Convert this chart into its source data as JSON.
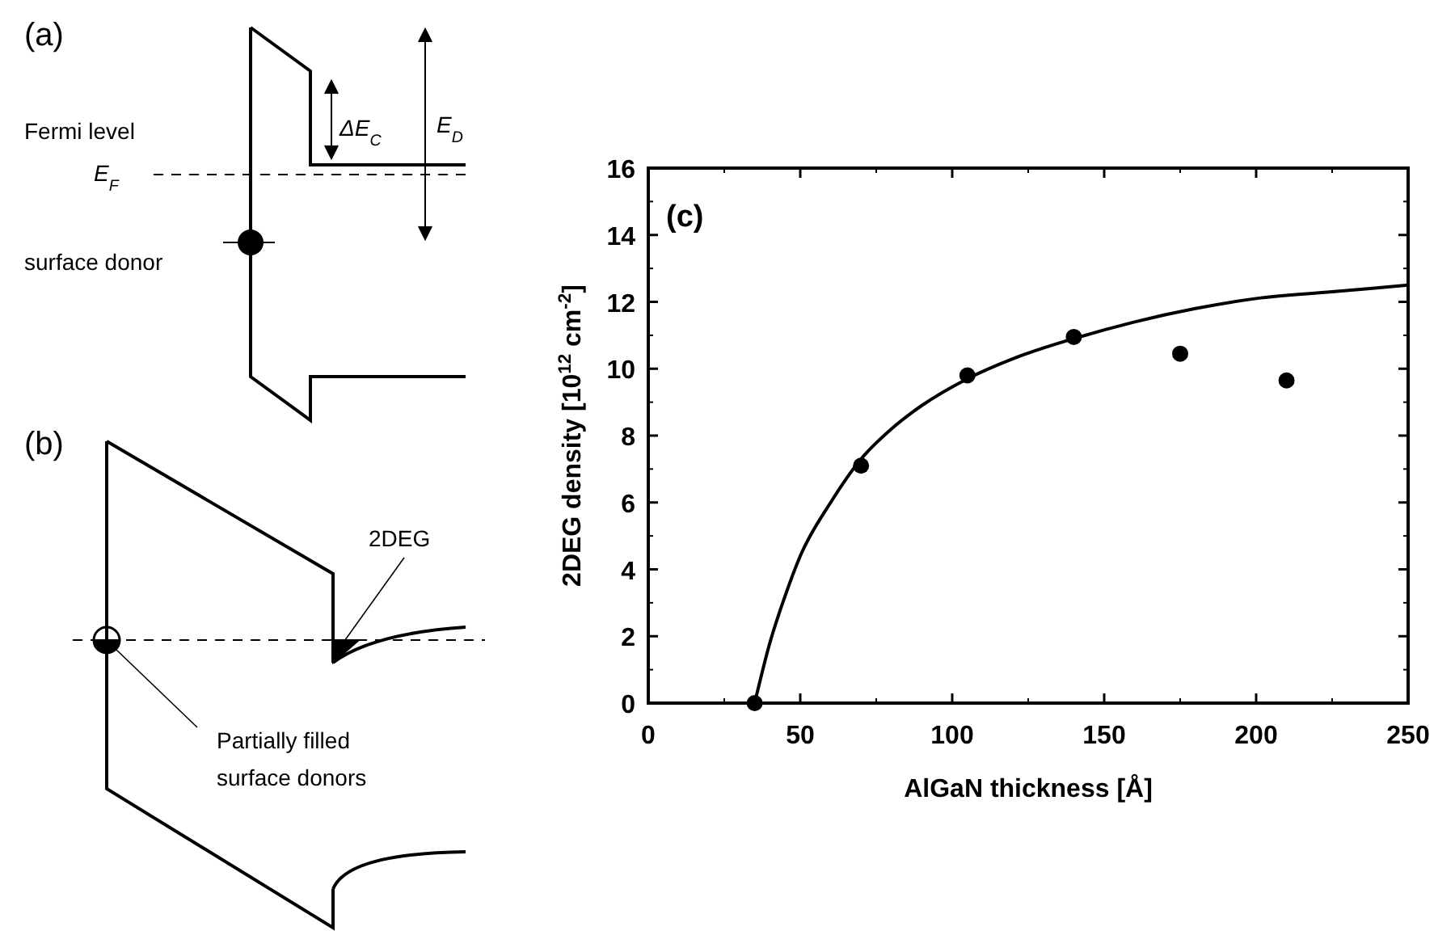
{
  "chart_data": {
    "type": "scatter",
    "xlabel": "AlGaN thickness [Å]",
    "ylabel": "2DEG density  [10$^{12}$ cm$^{-2}$]",
    "xlim": [
      0,
      250
    ],
    "xticks": [
      0,
      50,
      100,
      150,
      200,
      250
    ],
    "ylim": [
      0,
      16
    ],
    "yticks": [
      0,
      2,
      4,
      6,
      8,
      10,
      12,
      14,
      16
    ],
    "grid": false,
    "marker": "circle",
    "series": [
      {
        "color": "#000000",
        "x": [
          35,
          70,
          105,
          140,
          175,
          210
        ],
        "values": [
          0,
          7.1,
          9.8,
          10.95,
          10.45,
          9.65
        ]
      },
      {
        "type": "line",
        "color": "#000000",
        "marker": "none",
        "line_style": "solid",
        "x": [
          35,
          40,
          45,
          50,
          60,
          70,
          80,
          90,
          105,
          120,
          140,
          160,
          180,
          200,
          225,
          250
        ],
        "values": [
          0,
          1.8,
          3.2,
          4.4,
          6.0,
          7.3,
          8.2,
          8.9,
          9.7,
          10.3,
          10.9,
          11.4,
          11.8,
          12.1,
          12.3,
          12.5
        ]
      }
    ],
    "annotations": [
      "(c)",
      "(a)",
      "Fermi level",
      "E$_{F}$",
      "surface donor",
      "ΔE$_{C}$",
      "E$_{D}$",
      "(b)",
      "2DEG",
      "Partially filled",
      "surface donors"
    ]
  }
}
